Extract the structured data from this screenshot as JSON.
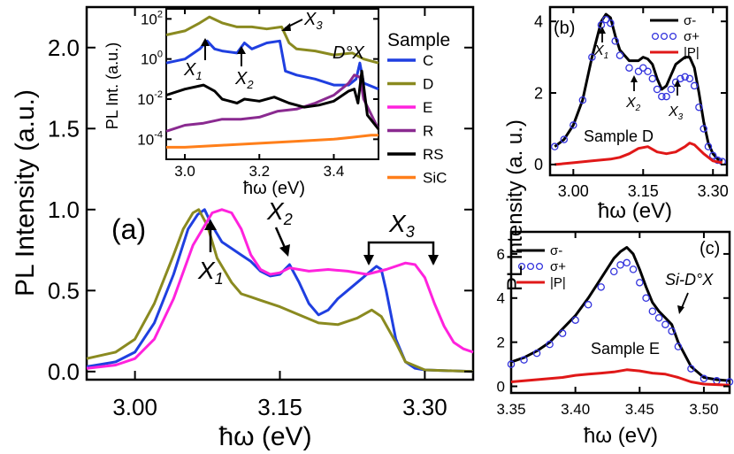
{
  "chart_data": [
    {
      "panel": "(a)",
      "type": "line",
      "xlabel": "ħω (eV)",
      "ylabel": "PL Intensity (a.u.)",
      "xlim": [
        2.95,
        3.35
      ],
      "ylim": [
        -0.05,
        2.25
      ],
      "xticks": [
        3.0,
        3.15,
        3.3
      ],
      "xtick_labels": [
        "3.00",
        "3.15",
        "3.30"
      ],
      "yticks": [
        0.0,
        0.5,
        1.0,
        1.5,
        2.0
      ],
      "ytick_labels": [
        "0.0",
        "0.5",
        "1.0",
        "1.5",
        "2.0"
      ],
      "panel_label": "(a)",
      "annotations": [
        "X1",
        "X2",
        "X3"
      ],
      "series": [
        {
          "name": "C",
          "color": "#1f3fe0",
          "x": [
            2.95,
            2.98,
            3.0,
            3.02,
            3.04,
            3.055,
            3.065,
            3.072,
            3.08,
            3.09,
            3.1,
            3.11,
            3.12,
            3.13,
            3.14,
            3.15,
            3.16,
            3.17,
            3.18,
            3.19,
            3.2,
            3.21,
            3.22,
            3.23,
            3.24,
            3.25,
            3.255,
            3.26,
            3.27,
            3.28,
            3.29,
            3.3,
            3.35
          ],
          "y": [
            0.03,
            0.06,
            0.12,
            0.3,
            0.6,
            0.88,
            0.97,
            1.0,
            0.9,
            0.8,
            0.76,
            0.72,
            0.68,
            0.62,
            0.59,
            0.6,
            0.66,
            0.55,
            0.42,
            0.35,
            0.38,
            0.45,
            0.5,
            0.55,
            0.6,
            0.65,
            0.63,
            0.5,
            0.2,
            0.06,
            0.02,
            0.01,
            0.0
          ]
        },
        {
          "name": "D",
          "color": "#8a8a20",
          "x": [
            2.95,
            2.98,
            3.0,
            3.02,
            3.04,
            3.05,
            3.06,
            3.066,
            3.075,
            3.085,
            3.1,
            3.11,
            3.12,
            3.13,
            3.15,
            3.17,
            3.19,
            3.21,
            3.23,
            3.245,
            3.255,
            3.27,
            3.28,
            3.3,
            3.35
          ],
          "y": [
            0.08,
            0.12,
            0.2,
            0.42,
            0.72,
            0.88,
            0.98,
            1.0,
            0.9,
            0.7,
            0.55,
            0.48,
            0.46,
            0.44,
            0.4,
            0.35,
            0.3,
            0.29,
            0.33,
            0.38,
            0.34,
            0.18,
            0.06,
            0.01,
            0.0
          ]
        },
        {
          "name": "E",
          "color": "#ff22dd",
          "x": [
            2.95,
            2.98,
            3.0,
            3.02,
            3.04,
            3.06,
            3.08,
            3.09,
            3.1,
            3.11,
            3.12,
            3.13,
            3.14,
            3.15,
            3.16,
            3.18,
            3.2,
            3.22,
            3.24,
            3.26,
            3.28,
            3.29,
            3.3,
            3.31,
            3.32,
            3.33,
            3.34,
            3.35
          ],
          "y": [
            0.02,
            0.04,
            0.08,
            0.2,
            0.45,
            0.78,
            0.98,
            1.0,
            0.98,
            0.88,
            0.72,
            0.63,
            0.6,
            0.61,
            0.64,
            0.62,
            0.63,
            0.62,
            0.6,
            0.63,
            0.67,
            0.66,
            0.58,
            0.42,
            0.28,
            0.18,
            0.14,
            0.12
          ]
        }
      ]
    },
    {
      "panel": "inset",
      "type": "line",
      "xlabel": "ħω (eV)",
      "ylabel": "PL Int. (a.u.)",
      "yscale": "log",
      "xlim": [
        2.95,
        3.52
      ],
      "ylim_log10": [
        -5,
        2.5
      ],
      "xticks": [
        3.0,
        3.2,
        3.4
      ],
      "xtick_labels": [
        "3.0",
        "3.2",
        "3.4"
      ],
      "yticks_log10": [
        -4,
        -2,
        0,
        2
      ],
      "ytick_labels": [
        "10-4",
        "10-2",
        "100",
        "102"
      ],
      "annotations": [
        "X1",
        "X2",
        "X3",
        "D°X"
      ],
      "series": [
        {
          "name": "C",
          "color": "#1f3fe0",
          "x": [
            2.95,
            3.0,
            3.04,
            3.06,
            3.08,
            3.1,
            3.14,
            3.16,
            3.18,
            3.22,
            3.255,
            3.27,
            3.3,
            3.35,
            3.4,
            3.44,
            3.46,
            3.47,
            3.48,
            3.52
          ],
          "logy": [
            -0.2,
            0.0,
            0.5,
            0.9,
            0.5,
            0.4,
            0.3,
            0.8,
            0.5,
            0.8,
            0.9,
            -0.6,
            -0.8,
            -1.0,
            -1.3,
            -1.3,
            -1.0,
            -0.2,
            -1.2,
            -1.5
          ]
        },
        {
          "name": "D",
          "color": "#8a8a20",
          "x": [
            2.95,
            3.0,
            3.04,
            3.066,
            3.1,
            3.14,
            3.18,
            3.22,
            3.26,
            3.28,
            3.3,
            3.35,
            3.4,
            3.45,
            3.48,
            3.52
          ],
          "logy": [
            1.2,
            1.4,
            1.8,
            2.1,
            1.8,
            1.6,
            1.6,
            1.5,
            1.6,
            0.8,
            0.5,
            0.4,
            0.2,
            0.3,
            0.0,
            -0.2
          ]
        },
        {
          "name": "R",
          "color": "#8a2a90",
          "x": [
            2.95,
            3.0,
            3.05,
            3.1,
            3.15,
            3.2,
            3.25,
            3.3,
            3.35,
            3.4,
            3.44,
            3.455,
            3.47,
            3.48,
            3.52
          ],
          "logy": [
            -3.6,
            -3.3,
            -3.2,
            -3.0,
            -3.0,
            -2.9,
            -2.6,
            -2.5,
            -2.2,
            -1.8,
            -1.2,
            -0.8,
            -0.9,
            -2.0,
            -3.5
          ]
        },
        {
          "name": "RS",
          "color": "#000000",
          "x": [
            2.95,
            3.0,
            3.05,
            3.08,
            3.1,
            3.14,
            3.16,
            3.2,
            3.24,
            3.28,
            3.32,
            3.36,
            3.4,
            3.44,
            3.455,
            3.465,
            3.475,
            3.49,
            3.52
          ],
          "logy": [
            -1.8,
            -1.5,
            -1.3,
            -1.6,
            -2.0,
            -2.2,
            -2.0,
            -2.1,
            -1.9,
            -2.2,
            -2.4,
            -2.3,
            -2.1,
            -1.6,
            -1.5,
            -2.2,
            -0.6,
            -2.8,
            -3.5
          ]
        },
        {
          "name": "SiC",
          "color": "#ff7f1a",
          "x": [
            2.95,
            3.0,
            3.1,
            3.2,
            3.3,
            3.4,
            3.45,
            3.5,
            3.52
          ],
          "logy": [
            -4.4,
            -4.4,
            -4.3,
            -4.2,
            -4.1,
            -4.0,
            -3.9,
            -3.8,
            -3.8
          ]
        }
      ],
      "legend_title": "Sample",
      "legend": [
        "C",
        "D",
        "E",
        "R",
        "RS",
        "SiC"
      ]
    },
    {
      "panel": "(b)",
      "type": "line",
      "xlabel": "ħω (eV)",
      "ylabel": "PL Intensity (a. u.)",
      "xlim": [
        2.95,
        3.33
      ],
      "ylim": [
        -0.3,
        4.4
      ],
      "xticks": [
        3.0,
        3.15,
        3.3
      ],
      "xtick_labels": [
        "3.00",
        "3.15",
        "3.30"
      ],
      "yticks": [
        0,
        2,
        4
      ],
      "ytick_labels": [
        "0",
        "2",
        "4"
      ],
      "panel_label": "(b)",
      "sample_label": "Sample D",
      "annotations": [
        "X1",
        "X2",
        "X3"
      ],
      "legend": [
        "σ-",
        "σ+",
        "|P|"
      ],
      "series": [
        {
          "name": "σ-",
          "color": "#000000",
          "style": "line",
          "x": [
            2.96,
            2.98,
            3.0,
            3.02,
            3.04,
            3.06,
            3.07,
            3.08,
            3.09,
            3.1,
            3.12,
            3.14,
            3.15,
            3.16,
            3.17,
            3.18,
            3.19,
            3.2,
            3.21,
            3.22,
            3.23,
            3.24,
            3.25,
            3.26,
            3.27,
            3.28,
            3.29,
            3.3,
            3.31,
            3.32
          ],
          "y": [
            0.5,
            0.7,
            1.1,
            1.8,
            3.0,
            4.0,
            4.2,
            4.1,
            3.6,
            3.2,
            2.9,
            2.9,
            3.0,
            2.95,
            2.8,
            2.4,
            2.1,
            2.2,
            2.5,
            2.8,
            2.9,
            3.0,
            3.0,
            2.7,
            2.0,
            1.2,
            0.6,
            0.3,
            0.15,
            0.1
          ]
        },
        {
          "name": "σ+",
          "color": "#3333dd",
          "style": "markers",
          "x": [
            2.96,
            2.98,
            3.0,
            3.02,
            3.04,
            3.06,
            3.07,
            3.08,
            3.09,
            3.1,
            3.12,
            3.14,
            3.15,
            3.16,
            3.17,
            3.18,
            3.19,
            3.2,
            3.21,
            3.22,
            3.23,
            3.24,
            3.25,
            3.26,
            3.27,
            3.28,
            3.29,
            3.3,
            3.31,
            3.32
          ],
          "y": [
            0.5,
            0.7,
            1.1,
            1.8,
            3.0,
            3.9,
            4.05,
            3.95,
            3.45,
            3.05,
            2.7,
            2.6,
            2.7,
            2.6,
            2.4,
            2.1,
            1.9,
            1.9,
            2.1,
            2.3,
            2.4,
            2.45,
            2.4,
            2.2,
            1.6,
            1.0,
            0.5,
            0.25,
            0.12,
            0.08
          ]
        },
        {
          "name": "|P|",
          "color": "#e01818",
          "style": "line",
          "x": [
            2.96,
            3.0,
            3.04,
            3.08,
            3.1,
            3.12,
            3.14,
            3.16,
            3.18,
            3.2,
            3.22,
            3.24,
            3.25,
            3.26,
            3.28,
            3.3,
            3.32
          ],
          "y": [
            0.0,
            0.05,
            0.1,
            0.15,
            0.2,
            0.3,
            0.45,
            0.5,
            0.35,
            0.3,
            0.35,
            0.5,
            0.6,
            0.55,
            0.3,
            0.1,
            0.05
          ]
        }
      ]
    },
    {
      "panel": "(c)",
      "type": "line",
      "xlabel": "ħω (eV)",
      "ylabel": "PL Intensity (a. u.)",
      "xlim": [
        3.35,
        3.52
      ],
      "ylim": [
        -0.3,
        7.0
      ],
      "xticks": [
        3.35,
        3.4,
        3.45,
        3.5
      ],
      "xtick_labels": [
        "3.35",
        "3.40",
        "3.45",
        "3.50"
      ],
      "yticks": [
        0,
        2,
        4,
        6
      ],
      "ytick_labels": [
        "0",
        "2",
        "4",
        "6"
      ],
      "panel_label": "(c)",
      "sample_label": "Sample E",
      "annotations": [
        "Si-D°X"
      ],
      "legend": [
        "σ-",
        "σ+",
        "|P|"
      ],
      "series": [
        {
          "name": "σ-",
          "color": "#000000",
          "style": "line",
          "x": [
            3.35,
            3.36,
            3.37,
            3.38,
            3.39,
            3.4,
            3.41,
            3.42,
            3.43,
            3.435,
            3.44,
            3.445,
            3.45,
            3.455,
            3.46,
            3.465,
            3.47,
            3.475,
            3.48,
            3.49,
            3.5,
            3.51,
            3.52
          ],
          "y": [
            1.1,
            1.3,
            1.6,
            2.0,
            2.6,
            3.2,
            4.0,
            4.9,
            5.8,
            6.1,
            6.3,
            6.0,
            5.3,
            4.5,
            3.8,
            3.4,
            3.1,
            2.8,
            2.0,
            0.9,
            0.4,
            0.3,
            0.25
          ]
        },
        {
          "name": "σ+",
          "color": "#3333dd",
          "style": "markers",
          "x": [
            3.35,
            3.36,
            3.37,
            3.38,
            3.39,
            3.4,
            3.41,
            3.42,
            3.43,
            3.435,
            3.44,
            3.445,
            3.45,
            3.455,
            3.46,
            3.465,
            3.47,
            3.475,
            3.48,
            3.49,
            3.5,
            3.51,
            3.52
          ],
          "y": [
            1.0,
            1.2,
            1.5,
            1.9,
            2.4,
            3.0,
            3.7,
            4.5,
            5.2,
            5.5,
            5.6,
            5.3,
            4.7,
            4.0,
            3.4,
            3.1,
            2.8,
            2.5,
            1.8,
            0.8,
            0.35,
            0.25,
            0.2
          ]
        },
        {
          "name": "|P|",
          "color": "#e01818",
          "style": "line",
          "x": [
            3.35,
            3.37,
            3.39,
            3.4,
            3.41,
            3.42,
            3.43,
            3.44,
            3.45,
            3.46,
            3.47,
            3.48,
            3.49,
            3.5,
            3.52
          ],
          "y": [
            0.2,
            0.3,
            0.4,
            0.5,
            0.55,
            0.6,
            0.65,
            0.75,
            0.7,
            0.6,
            0.55,
            0.4,
            0.2,
            0.1,
            0.05
          ]
        }
      ]
    }
  ],
  "labels": {
    "main_ylabel": "PL Intensity (a.u.)",
    "main_xlabel": "ħω (eV)",
    "inset_ylabel": "PL Int. (a.u.)",
    "inset_xlabel": "ħω (eV)",
    "b_ylabel": "PL Intensity (a. u.)",
    "b_xlabel": "ħω (eV)",
    "c_xlabel": "ħω (eV)"
  },
  "colors": {
    "C": "#1f3fe0",
    "D": "#8a8a20",
    "E": "#ff22dd",
    "R": "#8a2a90",
    "RS": "#000000",
    "SiC": "#ff7f1a",
    "sigma_minus": "#000000",
    "sigma_plus": "#3333dd",
    "P": "#e01818"
  }
}
